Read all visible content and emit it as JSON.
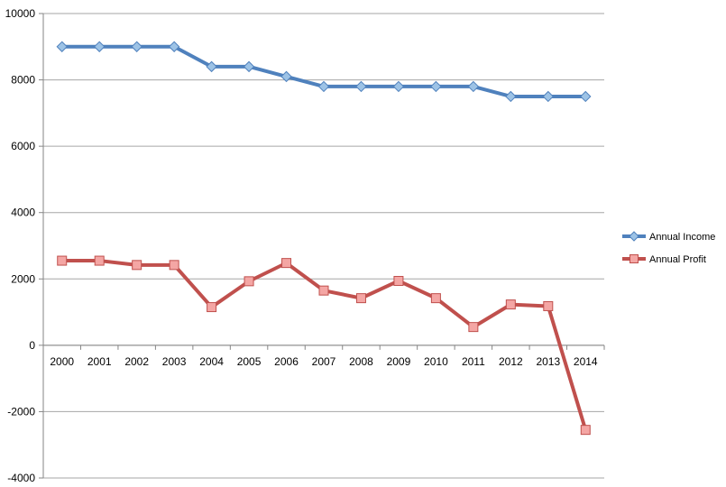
{
  "chart_data": {
    "type": "line",
    "title": "",
    "xlabel": "",
    "ylabel": "",
    "categories": [
      "2000",
      "2001",
      "2002",
      "2003",
      "2004",
      "2005",
      "2006",
      "2007",
      "2008",
      "2009",
      "2010",
      "2011",
      "2012",
      "2013",
      "2014"
    ],
    "ylim": [
      -4000,
      10000
    ],
    "yticks": [
      -4000,
      -2000,
      0,
      2000,
      4000,
      6000,
      8000,
      10000
    ],
    "grid": true,
    "legend_position": "right",
    "series": [
      {
        "name": "Annual Income",
        "color": "#4F81BD",
        "marker_color": "#9DC3E6",
        "marker": "diamond",
        "values": [
          9000,
          9000,
          9000,
          9000,
          8400,
          8400,
          8100,
          7800,
          7800,
          7800,
          7800,
          7800,
          7500,
          7500,
          7500
        ]
      },
      {
        "name": "Annual Profit",
        "color": "#C0504D",
        "marker_color": "#F4A6A4",
        "marker": "square",
        "values": [
          2550,
          2550,
          2420,
          2420,
          1150,
          1930,
          2480,
          1650,
          1420,
          1940,
          1420,
          550,
          1230,
          1180,
          -2550
        ]
      }
    ]
  }
}
